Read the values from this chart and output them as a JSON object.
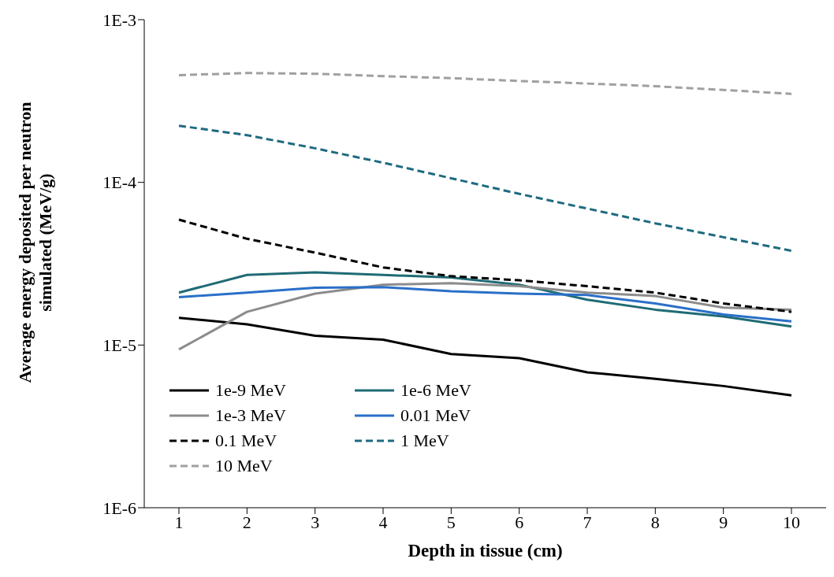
{
  "chart_data": {
    "type": "line",
    "xlabel": "Depth in tissue (cm)",
    "ylabel": "Average energy  deposited per neutron simulated (MeV/g)",
    "categories": [
      "1",
      "2",
      "3",
      "4",
      "5",
      "6",
      "7",
      "8",
      "9",
      "10"
    ],
    "log": "y",
    "ylim": [
      1e-06,
      0.001
    ],
    "yticks": [
      {
        "value": 1e-06,
        "label": "1E-6"
      },
      {
        "value": 1e-05,
        "label": "1E-5"
      },
      {
        "value": 0.0001,
        "label": "1E-4"
      },
      {
        "value": 0.001,
        "label": "1E-3"
      }
    ],
    "grid": false,
    "legend": "bottom left",
    "marker": "none",
    "series": [
      {
        "name": "1e-9 MeV",
        "color": "#000000",
        "line_style": "solid",
        "values": [
          1.47e-05,
          1.34e-05,
          1.14e-05,
          1.08e-05,
          8.8e-06,
          8.3e-06,
          6.8e-06,
          6.2e-06,
          5.6e-06,
          4.9e-06
        ]
      },
      {
        "name": "1e-6 MeV",
        "color": "#1f6b75",
        "line_style": "solid",
        "values": [
          2.1e-05,
          2.7e-05,
          2.8e-05,
          2.7e-05,
          2.6e-05,
          2.35e-05,
          1.9e-05,
          1.65e-05,
          1.5e-05,
          1.3e-05
        ]
      },
      {
        "name": "1e-3 MeV",
        "color": "#8c8c8c",
        "line_style": "solid",
        "values": [
          9.4e-06,
          1.6e-05,
          2.07e-05,
          2.35e-05,
          2.4e-05,
          2.3e-05,
          2.1e-05,
          2e-05,
          1.7e-05,
          1.65e-05
        ]
      },
      {
        "name": "0.01 MeV",
        "color": "#2a6fc9",
        "line_style": "solid",
        "values": [
          1.97e-05,
          2.1e-05,
          2.25e-05,
          2.27e-05,
          2.14e-05,
          2.07e-05,
          2.03e-05,
          1.8e-05,
          1.54e-05,
          1.4e-05
        ]
      },
      {
        "name": "0.1 MeV",
        "color": "#000000",
        "line_style": "dashed",
        "values": [
          5.9e-05,
          4.5e-05,
          3.7e-05,
          3e-05,
          2.65e-05,
          2.5e-05,
          2.3e-05,
          2.1e-05,
          1.8e-05,
          1.6e-05
        ]
      },
      {
        "name": "1 MeV",
        "color": "#1f6b80",
        "line_style": "dashed",
        "values": [
          0.000223,
          0.000195,
          0.000162,
          0.000132,
          0.000106,
          8.5e-05,
          6.9e-05,
          5.6e-05,
          4.6e-05,
          3.8e-05
        ]
      },
      {
        "name": "10 MeV",
        "color": "#a0a0a0",
        "line_style": "dashed",
        "values": [
          0.000456,
          0.00047,
          0.000465,
          0.00045,
          0.000437,
          0.00042,
          0.000405,
          0.00039,
          0.00037,
          0.00035
        ]
      }
    ]
  }
}
